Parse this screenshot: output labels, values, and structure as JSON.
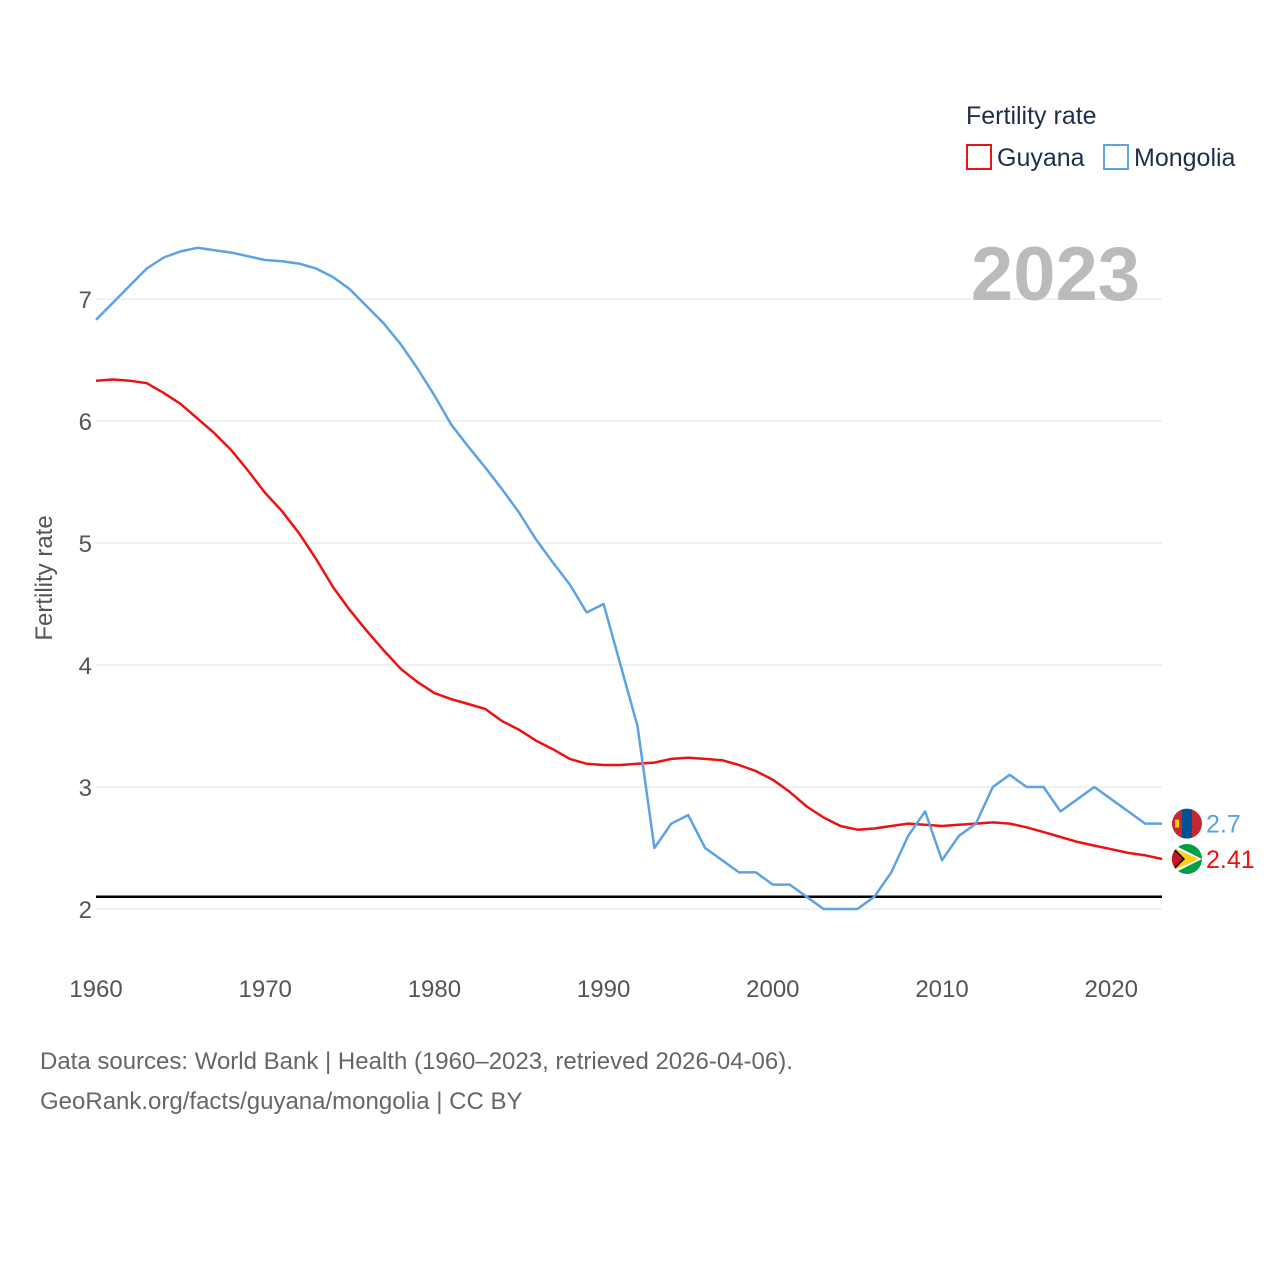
{
  "colors": {
    "guyana": "#ee1111",
    "mongolia": "#5ba3e6",
    "threshold": "#000000",
    "grid": "#e6e6e6"
  },
  "chart_data": {
    "type": "line",
    "ylabel": "Fertility rate",
    "year_label": "2023",
    "xlim": [
      1960,
      2023
    ],
    "ylim": [
      1.5,
      7.8
    ],
    "x_ticks": [
      1960,
      1970,
      1980,
      1990,
      2000,
      2010,
      2020
    ],
    "y_ticks": [
      2,
      3,
      4,
      5,
      6,
      7
    ],
    "reference_line": {
      "value": 2.1,
      "label": ""
    },
    "legend": {
      "title": "Fertility rate",
      "placement": "top-right"
    },
    "x": [
      1960,
      1961,
      1962,
      1963,
      1964,
      1965,
      1966,
      1967,
      1968,
      1969,
      1970,
      1971,
      1972,
      1973,
      1974,
      1975,
      1976,
      1977,
      1978,
      1979,
      1980,
      1981,
      1982,
      1983,
      1984,
      1985,
      1986,
      1987,
      1988,
      1989,
      1990,
      1991,
      1992,
      1993,
      1994,
      1995,
      1996,
      1997,
      1998,
      1999,
      2000,
      2001,
      2002,
      2003,
      2004,
      2005,
      2006,
      2007,
      2008,
      2009,
      2010,
      2011,
      2012,
      2013,
      2014,
      2015,
      2016,
      2017,
      2018,
      2019,
      2020,
      2021,
      2022,
      2023
    ],
    "series": [
      {
        "name": "Guyana",
        "color_key": "guyana",
        "end_label": "2.41",
        "flag_icon": "guyana-flag-icon",
        "values": [
          6.33,
          6.34,
          6.33,
          6.31,
          6.23,
          6.14,
          6.02,
          5.9,
          5.76,
          5.59,
          5.41,
          5.26,
          5.08,
          4.87,
          4.64,
          4.45,
          4.28,
          4.12,
          3.97,
          3.86,
          3.77,
          3.72,
          3.68,
          3.64,
          3.54,
          3.47,
          3.38,
          3.31,
          3.23,
          3.19,
          3.18,
          3.18,
          3.19,
          3.2,
          3.23,
          3.24,
          3.23,
          3.22,
          3.18,
          3.13,
          3.06,
          2.96,
          2.84,
          2.75,
          2.68,
          2.65,
          2.66,
          2.68,
          2.7,
          2.69,
          2.68,
          2.69,
          2.7,
          2.71,
          2.7,
          2.67,
          2.63,
          2.59,
          2.55,
          2.52,
          2.49,
          2.46,
          2.44,
          2.41
        ]
      },
      {
        "name": "Mongolia",
        "color_key": "mongolia",
        "end_label": "2.7",
        "flag_icon": "mongolia-flag-icon",
        "values": [
          6.83,
          6.97,
          7.11,
          7.25,
          7.34,
          7.39,
          7.42,
          7.4,
          7.38,
          7.35,
          7.32,
          7.31,
          7.29,
          7.25,
          7.18,
          7.08,
          6.94,
          6.8,
          6.63,
          6.43,
          6.21,
          5.97,
          5.79,
          5.62,
          5.44,
          5.25,
          5.03,
          4.84,
          4.66,
          4.43,
          4.5,
          4.0,
          3.5,
          2.5,
          2.7,
          2.77,
          2.5,
          2.4,
          2.3,
          2.3,
          2.2,
          2.2,
          2.1,
          2.0,
          2.0,
          2.0,
          2.1,
          2.3,
          2.6,
          2.8,
          2.4,
          2.6,
          2.7,
          3.0,
          3.1,
          3.0,
          3.0,
          2.8,
          2.9,
          3.0,
          2.9,
          2.8,
          2.7,
          2.7
        ]
      }
    ]
  },
  "footer": {
    "line1": "Data sources: World Bank | Health (1960–2023, retrieved 2026-04-06).",
    "line2": "GeoRank.org/facts/guyana/mongolia | CC BY"
  }
}
